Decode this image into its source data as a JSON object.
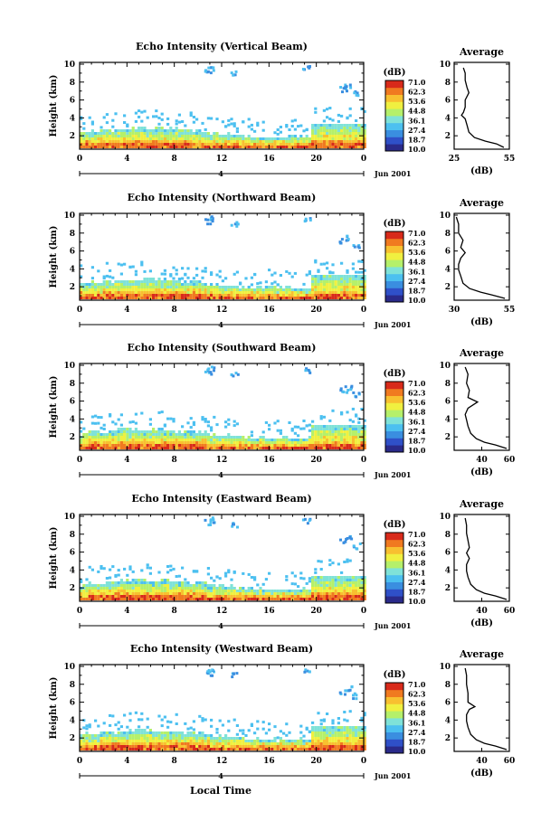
{
  "figure": {
    "x_axis_label": "Local Time",
    "date_label": "Jun 2001",
    "day_marker": "4"
  },
  "colors": {
    "scale": [
      "#2a2a8a",
      "#2f50c8",
      "#3a8ee0",
      "#4cc0f0",
      "#7fe2d8",
      "#b5f06a",
      "#f0f040",
      "#f8c030",
      "#f07a20",
      "#d82a1a"
    ]
  },
  "chart_data": [
    {
      "type": "heatmap",
      "title": "Echo Intensity (Vertical Beam)",
      "ylabel": "Height (km)",
      "xlabel": "Local Time",
      "x_ticks": [
        "0",
        "4",
        "8",
        "12",
        "16",
        "20",
        "0"
      ],
      "y_ticks": [
        "2",
        "4",
        "6",
        "8",
        "10"
      ],
      "xlim": [
        0,
        24
      ],
      "ylim": [
        0.5,
        10.2
      ],
      "colorbar": {
        "unit": "(dB)",
        "ticks": [
          "71.0",
          "62.3",
          "53.6",
          "44.8",
          "36.1",
          "27.4",
          "18.7",
          "10.0"
        ]
      },
      "avg_profile": {
        "title": "Average",
        "xlabel": "(dB)",
        "x_ticks": [
          "25",
          "55"
        ],
        "xlim": [
          25,
          55
        ],
        "y_ticks": [
          "2",
          "4",
          "6",
          "8",
          "10"
        ],
        "points": [
          [
            52,
            0.7
          ],
          [
            48,
            1.1
          ],
          [
            42,
            1.4
          ],
          [
            36,
            1.8
          ],
          [
            33,
            2.4
          ],
          [
            32,
            3.2
          ],
          [
            31,
            3.9
          ],
          [
            29,
            4.3
          ],
          [
            30,
            4.6
          ],
          [
            31,
            5.2
          ],
          [
            31,
            6.0
          ],
          [
            33,
            6.8
          ],
          [
            32,
            7.4
          ],
          [
            31,
            8.2
          ],
          [
            31,
            9.0
          ],
          [
            30,
            9.6
          ]
        ]
      }
    },
    {
      "type": "heatmap",
      "title": "Echo Intensity (Northward Beam)",
      "ylabel": "Height (km)",
      "xlabel": "Local Time",
      "x_ticks": [
        "0",
        "4",
        "8",
        "12",
        "16",
        "20",
        "0"
      ],
      "y_ticks": [
        "2",
        "4",
        "6",
        "8",
        "10"
      ],
      "xlim": [
        0,
        24
      ],
      "ylim": [
        0.5,
        10.2
      ],
      "colorbar": {
        "unit": "(dB)",
        "ticks": [
          "71.0",
          "62.3",
          "53.6",
          "44.8",
          "36.1",
          "27.4",
          "18.7",
          "10.0"
        ]
      },
      "avg_profile": {
        "title": "Average",
        "xlabel": "(dB)",
        "x_ticks": [
          "30",
          "55"
        ],
        "xlim": [
          30,
          55
        ],
        "y_ticks": [
          "2",
          "4",
          "6",
          "8",
          "10"
        ],
        "points": [
          [
            53,
            0.7
          ],
          [
            47,
            1.1
          ],
          [
            42,
            1.4
          ],
          [
            37,
            1.8
          ],
          [
            34,
            2.4
          ],
          [
            33,
            3.2
          ],
          [
            32,
            3.9
          ],
          [
            32,
            4.5
          ],
          [
            33,
            5.2
          ],
          [
            35,
            5.8
          ],
          [
            33,
            6.4
          ],
          [
            34,
            7.2
          ],
          [
            32,
            8.0
          ],
          [
            32,
            9.0
          ],
          [
            31,
            9.8
          ]
        ]
      }
    },
    {
      "type": "heatmap",
      "title": "Echo Intensity (Southward Beam)",
      "ylabel": "Height (km)",
      "xlabel": "Local Time",
      "x_ticks": [
        "0",
        "4",
        "8",
        "12",
        "16",
        "20",
        "0"
      ],
      "y_ticks": [
        "2",
        "4",
        "6",
        "8",
        "10"
      ],
      "xlim": [
        0,
        24
      ],
      "ylim": [
        0.5,
        10.2
      ],
      "colorbar": {
        "unit": "(dB)",
        "ticks": [
          "71.0",
          "62.3",
          "53.6",
          "44.8",
          "36.1",
          "27.4",
          "18.7",
          "10.0"
        ]
      },
      "avg_profile": {
        "title": "Average",
        "xlabel": "(dB)",
        "x_ticks": [
          "40",
          "60"
        ],
        "xlim": [
          20,
          60
        ],
        "y_ticks": [
          "2",
          "4",
          "6",
          "8",
          "10"
        ],
        "points": [
          [
            58,
            0.7
          ],
          [
            50,
            1.1
          ],
          [
            42,
            1.4
          ],
          [
            36,
            1.8
          ],
          [
            32,
            2.4
          ],
          [
            30,
            3.2
          ],
          [
            29,
            3.9
          ],
          [
            28,
            4.5
          ],
          [
            30,
            5.2
          ],
          [
            37,
            5.9
          ],
          [
            30,
            6.4
          ],
          [
            31,
            7.2
          ],
          [
            29,
            8.0
          ],
          [
            30,
            9.0
          ],
          [
            28,
            9.8
          ]
        ]
      }
    },
    {
      "type": "heatmap",
      "title": "Echo Intensity (Eastward Beam)",
      "ylabel": "Height (km)",
      "xlabel": "Local Time",
      "x_ticks": [
        "0",
        "4",
        "8",
        "12",
        "16",
        "20",
        "0"
      ],
      "y_ticks": [
        "2",
        "4",
        "6",
        "8",
        "10"
      ],
      "xlim": [
        0,
        24
      ],
      "ylim": [
        0.5,
        10.2
      ],
      "colorbar": {
        "unit": "(dB)",
        "ticks": [
          "71.0",
          "62.3",
          "53.6",
          "44.8",
          "36.1",
          "27.4",
          "18.7",
          "10.0"
        ]
      },
      "avg_profile": {
        "title": "Average",
        "xlabel": "(dB)",
        "x_ticks": [
          "40",
          "60"
        ],
        "xlim": [
          20,
          60
        ],
        "y_ticks": [
          "2",
          "4",
          "6",
          "8",
          "10"
        ],
        "points": [
          [
            58,
            0.7
          ],
          [
            50,
            1.1
          ],
          [
            42,
            1.4
          ],
          [
            36,
            1.8
          ],
          [
            32,
            2.4
          ],
          [
            30,
            3.2
          ],
          [
            29,
            3.9
          ],
          [
            29,
            4.6
          ],
          [
            31,
            5.3
          ],
          [
            29,
            5.9
          ],
          [
            31,
            6.5
          ],
          [
            30,
            7.3
          ],
          [
            29,
            8.1
          ],
          [
            29,
            9.0
          ],
          [
            28,
            9.8
          ]
        ]
      }
    },
    {
      "type": "heatmap",
      "title": "Echo Intensity (Westward Beam)",
      "ylabel": "Height (km)",
      "xlabel": "Local Time",
      "x_ticks": [
        "0",
        "4",
        "8",
        "12",
        "16",
        "20",
        "0"
      ],
      "y_ticks": [
        "2",
        "4",
        "6",
        "8",
        "10"
      ],
      "xlim": [
        0,
        24
      ],
      "ylim": [
        0.5,
        10.2
      ],
      "colorbar": {
        "unit": "(dB)",
        "ticks": [
          "71.0",
          "62.3",
          "53.6",
          "44.8",
          "36.1",
          "27.4",
          "18.7",
          "10.0"
        ]
      },
      "avg_profile": {
        "title": "Average",
        "xlabel": "(dB)",
        "x_ticks": [
          "40",
          "60"
        ],
        "xlim": [
          20,
          60
        ],
        "y_ticks": [
          "2",
          "4",
          "6",
          "8",
          "10"
        ],
        "points": [
          [
            58,
            0.7
          ],
          [
            50,
            1.1
          ],
          [
            42,
            1.4
          ],
          [
            36,
            1.8
          ],
          [
            32,
            2.4
          ],
          [
            30,
            3.2
          ],
          [
            29,
            3.9
          ],
          [
            29,
            4.6
          ],
          [
            31,
            5.2
          ],
          [
            35,
            5.5
          ],
          [
            30,
            6.0
          ],
          [
            30,
            7.0
          ],
          [
            29,
            8.0
          ],
          [
            29,
            9.0
          ],
          [
            28,
            9.8
          ]
        ]
      }
    }
  ]
}
